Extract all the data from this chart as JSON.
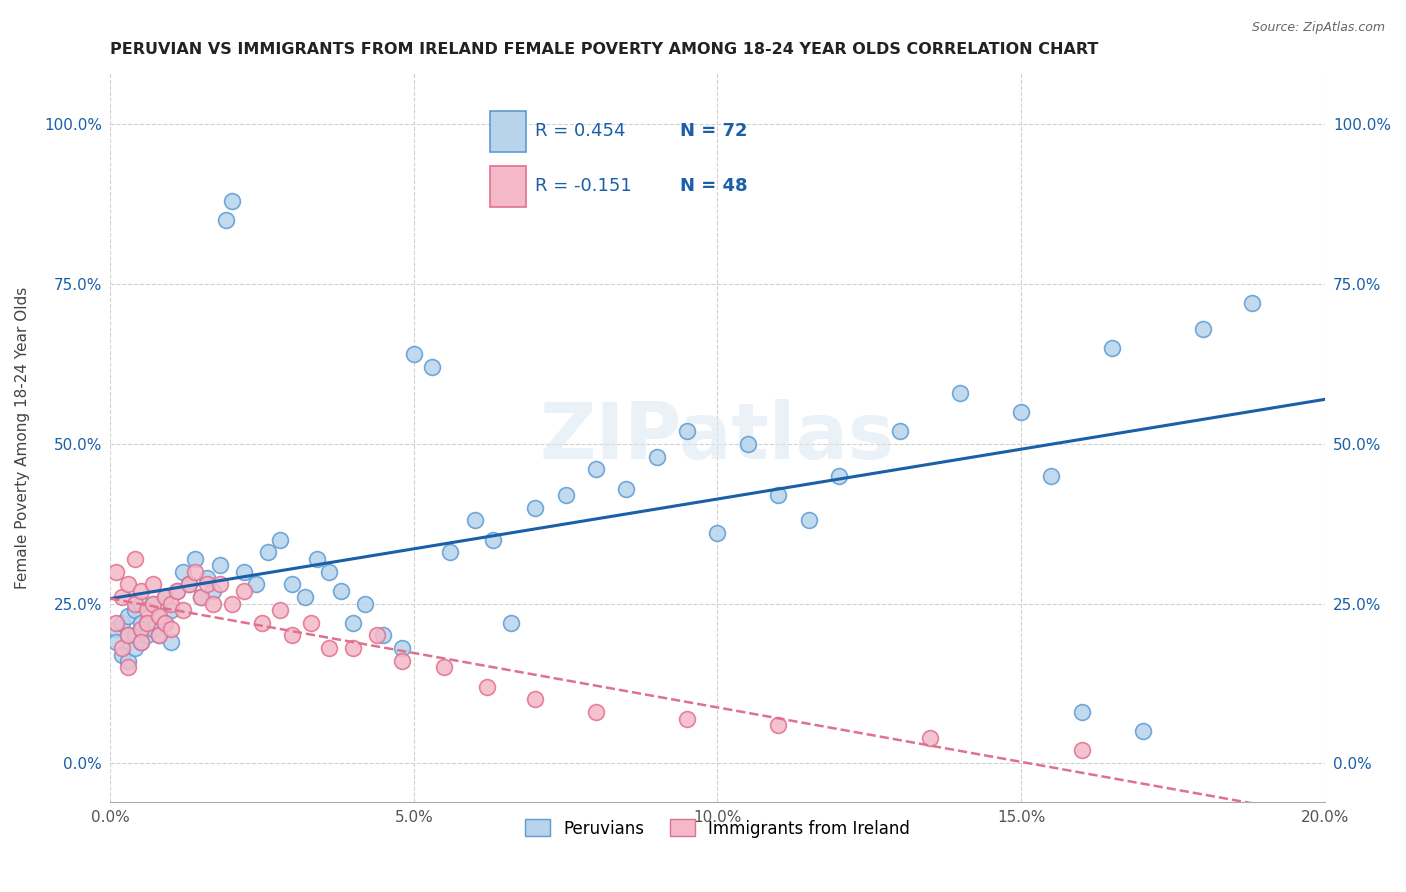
{
  "title": "PERUVIAN VS IMMIGRANTS FROM IRELAND FEMALE POVERTY AMONG 18-24 YEAR OLDS CORRELATION CHART",
  "source": "Source: ZipAtlas.com",
  "ylabel": "Female Poverty Among 18-24 Year Olds",
  "xlim": [
    0.0,
    0.2
  ],
  "ylim": [
    -0.06,
    1.08
  ],
  "xticks": [
    0.0,
    0.05,
    0.1,
    0.15,
    0.2
  ],
  "xticklabels": [
    "0.0%",
    "5.0%",
    "10.0%",
    "15.0%",
    "20.0%"
  ],
  "yticks": [
    0.0,
    0.25,
    0.5,
    0.75,
    1.0
  ],
  "yticklabels": [
    "0.0%",
    "25.0%",
    "50.0%",
    "75.0%",
    "100.0%"
  ],
  "peruvian_fill": "#b8d4ec",
  "peruvian_edge": "#5b9bd5",
  "ireland_fill": "#f4b8c8",
  "ireland_edge": "#e07090",
  "trend_peru_color": "#1a5fa8",
  "trend_ireland_color": "#e07090",
  "R_peruvian": 0.454,
  "N_peruvian": 72,
  "R_ireland": -0.151,
  "N_ireland": 48,
  "legend_labels": [
    "Peruvians",
    "Immigrants from Ireland"
  ],
  "watermark": "ZIPatlas",
  "peru_x": [
    0.001,
    0.001,
    0.002,
    0.002,
    0.003,
    0.003,
    0.003,
    0.004,
    0.004,
    0.004,
    0.005,
    0.005,
    0.005,
    0.006,
    0.006,
    0.007,
    0.007,
    0.008,
    0.008,
    0.009,
    0.009,
    0.01,
    0.01,
    0.011,
    0.012,
    0.013,
    0.014,
    0.015,
    0.016,
    0.017,
    0.018,
    0.019,
    0.02,
    0.022,
    0.024,
    0.026,
    0.028,
    0.03,
    0.032,
    0.034,
    0.036,
    0.038,
    0.04,
    0.042,
    0.045,
    0.048,
    0.05,
    0.053,
    0.056,
    0.06,
    0.063,
    0.066,
    0.07,
    0.075,
    0.08,
    0.085,
    0.09,
    0.095,
    0.1,
    0.105,
    0.11,
    0.115,
    0.12,
    0.13,
    0.14,
    0.15,
    0.155,
    0.16,
    0.165,
    0.17,
    0.18,
    0.188
  ],
  "peru_y": [
    0.21,
    0.19,
    0.22,
    0.17,
    0.2,
    0.23,
    0.16,
    0.18,
    0.24,
    0.2,
    0.19,
    0.22,
    0.25,
    0.2,
    0.22,
    0.21,
    0.25,
    0.2,
    0.23,
    0.22,
    0.26,
    0.19,
    0.24,
    0.27,
    0.3,
    0.28,
    0.32,
    0.26,
    0.29,
    0.27,
    0.31,
    0.85,
    0.88,
    0.3,
    0.28,
    0.33,
    0.35,
    0.28,
    0.26,
    0.32,
    0.3,
    0.27,
    0.22,
    0.25,
    0.2,
    0.18,
    0.64,
    0.62,
    0.33,
    0.38,
    0.35,
    0.22,
    0.4,
    0.42,
    0.46,
    0.43,
    0.48,
    0.52,
    0.36,
    0.5,
    0.42,
    0.38,
    0.45,
    0.52,
    0.58,
    0.55,
    0.45,
    0.08,
    0.65,
    0.05,
    0.68,
    0.72
  ],
  "ireland_x": [
    0.001,
    0.001,
    0.002,
    0.002,
    0.003,
    0.003,
    0.003,
    0.004,
    0.004,
    0.005,
    0.005,
    0.005,
    0.006,
    0.006,
    0.007,
    0.007,
    0.008,
    0.008,
    0.009,
    0.009,
    0.01,
    0.01,
    0.011,
    0.012,
    0.013,
    0.014,
    0.015,
    0.016,
    0.017,
    0.018,
    0.02,
    0.022,
    0.025,
    0.028,
    0.03,
    0.033,
    0.036,
    0.04,
    0.044,
    0.048,
    0.055,
    0.062,
    0.07,
    0.08,
    0.095,
    0.11,
    0.135,
    0.16
  ],
  "ireland_y": [
    0.22,
    0.3,
    0.18,
    0.26,
    0.2,
    0.28,
    0.15,
    0.25,
    0.32,
    0.21,
    0.27,
    0.19,
    0.24,
    0.22,
    0.28,
    0.25,
    0.23,
    0.2,
    0.26,
    0.22,
    0.25,
    0.21,
    0.27,
    0.24,
    0.28,
    0.3,
    0.26,
    0.28,
    0.25,
    0.28,
    0.25,
    0.27,
    0.22,
    0.24,
    0.2,
    0.22,
    0.18,
    0.18,
    0.2,
    0.16,
    0.15,
    0.12,
    0.1,
    0.08,
    0.07,
    0.06,
    0.04,
    0.02
  ]
}
